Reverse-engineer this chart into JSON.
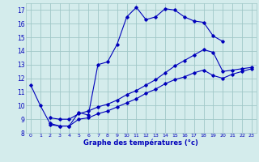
{
  "xlabel": "Graphe des températures (°c)",
  "bg_color": "#d4ecec",
  "grid_color": "#a0c8c8",
  "line_color": "#0000bb",
  "xlim": [
    -0.5,
    23.5
  ],
  "ylim": [
    8,
    17.5
  ],
  "yticks": [
    8,
    9,
    10,
    11,
    12,
    13,
    14,
    15,
    16,
    17
  ],
  "xticks": [
    0,
    1,
    2,
    3,
    4,
    5,
    6,
    7,
    8,
    9,
    10,
    11,
    12,
    13,
    14,
    15,
    16,
    17,
    18,
    19,
    20,
    21,
    22,
    23
  ],
  "series1_x": [
    0,
    1,
    2,
    3,
    4,
    5,
    6,
    7,
    8,
    9,
    10,
    11,
    12,
    13,
    14,
    15,
    16,
    17,
    18,
    19,
    20
  ],
  "series1_y": [
    11.5,
    10.0,
    8.7,
    8.5,
    8.5,
    9.5,
    9.3,
    13.0,
    13.2,
    14.5,
    16.5,
    17.2,
    16.3,
    16.5,
    17.1,
    17.0,
    16.5,
    16.2,
    16.1,
    15.1,
    14.7
  ],
  "series2_x": [
    2,
    3,
    4,
    5,
    6,
    7,
    8,
    9,
    10,
    11,
    12,
    13,
    14,
    15,
    16,
    17,
    18,
    19,
    20,
    21,
    22,
    23
  ],
  "series2_y": [
    9.1,
    9.0,
    9.0,
    9.4,
    9.6,
    9.9,
    10.1,
    10.4,
    10.8,
    11.1,
    11.5,
    11.9,
    12.4,
    12.9,
    13.3,
    13.7,
    14.1,
    13.9,
    12.5,
    12.6,
    12.7,
    12.8
  ],
  "series3_x": [
    2,
    3,
    4,
    5,
    6,
    7,
    8,
    9,
    10,
    11,
    12,
    13,
    14,
    15,
    16,
    17,
    18,
    19,
    20,
    21,
    22,
    23
  ],
  "series3_y": [
    8.6,
    8.5,
    8.5,
    9.0,
    9.1,
    9.4,
    9.6,
    9.9,
    10.2,
    10.5,
    10.9,
    11.2,
    11.6,
    11.9,
    12.1,
    12.4,
    12.6,
    12.2,
    12.0,
    12.3,
    12.5,
    12.7
  ]
}
